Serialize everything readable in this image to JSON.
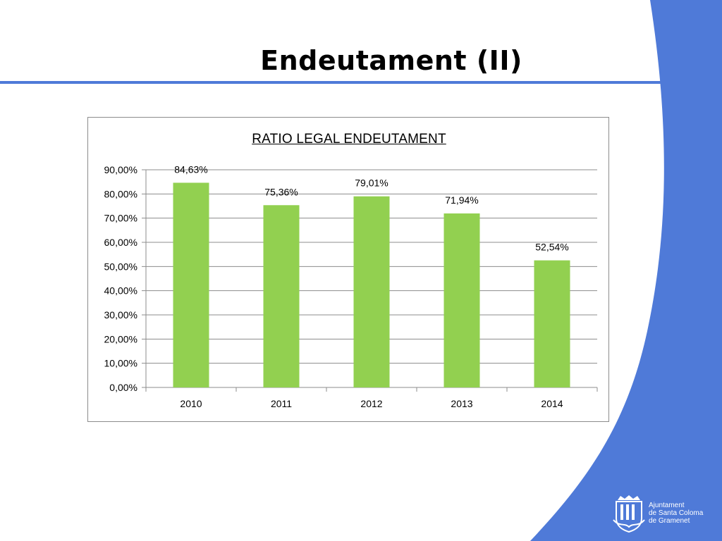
{
  "slide": {
    "title": "Endeutament (II)",
    "accent_color": "#4f7ad8",
    "line_color": "#4f7ad8"
  },
  "logo": {
    "icon": "coat-of-arms-icon",
    "lines": [
      "Ajuntament",
      "de Santa Coloma",
      "de Gramenet"
    ]
  },
  "chart_data": {
    "type": "bar",
    "title": "RATIO LEGAL ENDEUTAMENT",
    "categories": [
      "2010",
      "2011",
      "2012",
      "2013",
      "2014"
    ],
    "values": [
      84.63,
      75.36,
      79.01,
      71.94,
      52.54
    ],
    "data_labels": [
      "84,63%",
      "75,36%",
      "79,01%",
      "71,94%",
      "52,54%"
    ],
    "y_ticks": [
      0,
      10,
      20,
      30,
      40,
      50,
      60,
      70,
      80,
      90
    ],
    "y_tick_labels": [
      "0,00%",
      "10,00%",
      "20,00%",
      "30,00%",
      "40,00%",
      "50,00%",
      "60,00%",
      "70,00%",
      "80,00%",
      "90,00%"
    ],
    "ylim": [
      0,
      90
    ],
    "xlabel": "",
    "ylabel": "",
    "grid": true,
    "legend": "none",
    "bar_color": "#92d050",
    "grid_color": "#8c8c8c"
  }
}
